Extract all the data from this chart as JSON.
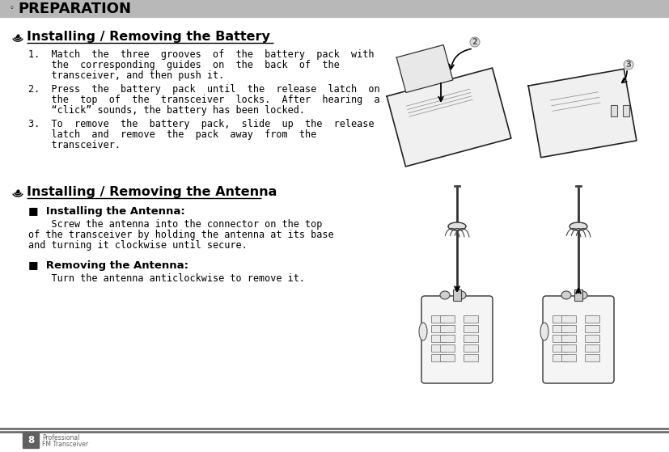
{
  "bg_color": "#ffffff",
  "header_bg": "#b8b8b8",
  "header_text": "PREPARATION",
  "header_bullet": "◦",
  "page_num": "8",
  "page_label1": "Professional",
  "page_label2": "FM Transceiver",
  "footer_line_color": "#606060",
  "footer_bg": "#606060",
  "section1_title": "Installing / Removing the Battery",
  "section2_title": "Installing / Removing the Antenna",
  "sub1_text": "■  Installing the Antenna:",
  "sub2_text": "■  Removing the Antenna:",
  "body_text_color": "#000000",
  "title_underline_color": "#000000",
  "text_fontsize": 8.5,
  "title_fontsize": 11.5,
  "sub_fontsize": 9.5,
  "body1_line1": "1.  Match  the  three  grooves  of  the  battery  pack  with",
  "body1_line2": "    the  corresponding  guides  on  the  back  of  the",
  "body1_line3": "    transceiver, and then push it.",
  "body2_line1": "2.  Press  the  battery  pack  until  the  release  latch  on",
  "body2_line2": "    the  top  of  the  transceiver  locks.  After  hearing  a",
  "body2_line3": "    “click” sounds, the battery has been locked.",
  "body3_line1": "3.  To  remove  the  battery  pack,  slide  up  the  release",
  "body3_line2": "    latch  and  remove  the  pack  away  from  the",
  "body3_line3": "    transceiver.",
  "antenna_install_text1": "    Screw the antenna into the connector on the top",
  "antenna_install_text2": "of the transceiver by holding the antenna at its base",
  "antenna_install_text3": "and turning it clockwise until secure.",
  "antenna_remove_text": "    Turn the antenna anticlockwise to remove it."
}
